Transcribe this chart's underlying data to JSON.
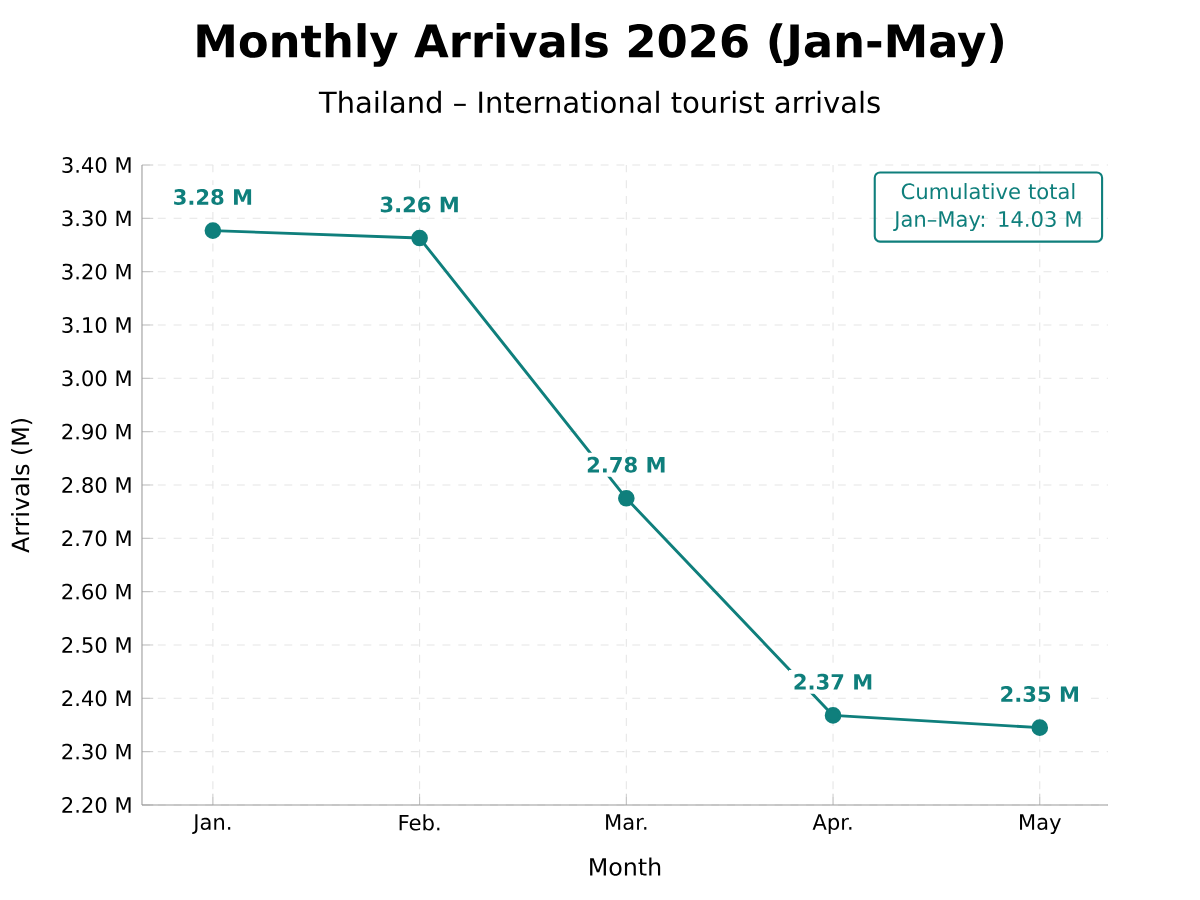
{
  "chart_data": {
    "type": "line",
    "title": "Monthly Arrivals 2026 (Jan-May)",
    "subtitle": "Thailand – International tourist arrivals",
    "xlabel": "Month",
    "ylabel": "Arrivals (M)",
    "categories": [
      "Jan.",
      "Feb.",
      "Mar.",
      "Apr.",
      "May"
    ],
    "series": [
      {
        "color": "#0f7f7c",
        "values": [
          3.277,
          3.263,
          2.775,
          2.368,
          2.345
        ],
        "value_labels": [
          "3.28 M",
          "3.26 M",
          "2.78 M",
          "2.37 M",
          "2.35 M"
        ]
      }
    ],
    "ylim": [
      2.2,
      3.4
    ],
    "yticks": [
      {
        "value": 2.2,
        "label": "2.20 M"
      },
      {
        "value": 2.3,
        "label": "2.30 M"
      },
      {
        "value": 2.4,
        "label": "2.40 M"
      },
      {
        "value": 2.5,
        "label": "2.50 M"
      },
      {
        "value": 2.6,
        "label": "2.60 M"
      },
      {
        "value": 2.7,
        "label": "2.70 M"
      },
      {
        "value": 2.8,
        "label": "2.80 M"
      },
      {
        "value": 2.9,
        "label": "2.90 M"
      },
      {
        "value": 3.0,
        "label": "3.00 M"
      },
      {
        "value": 3.1,
        "label": "3.10 M"
      },
      {
        "value": 3.2,
        "label": "3.20 M"
      },
      {
        "value": 3.3,
        "label": "3.30 M"
      },
      {
        "value": 3.4,
        "label": "3.40 M"
      }
    ],
    "annotations": [
      "Cumulative total Jan–May: 14.03 M"
    ],
    "grid": true,
    "marker": "circle",
    "line_style": "solid"
  }
}
